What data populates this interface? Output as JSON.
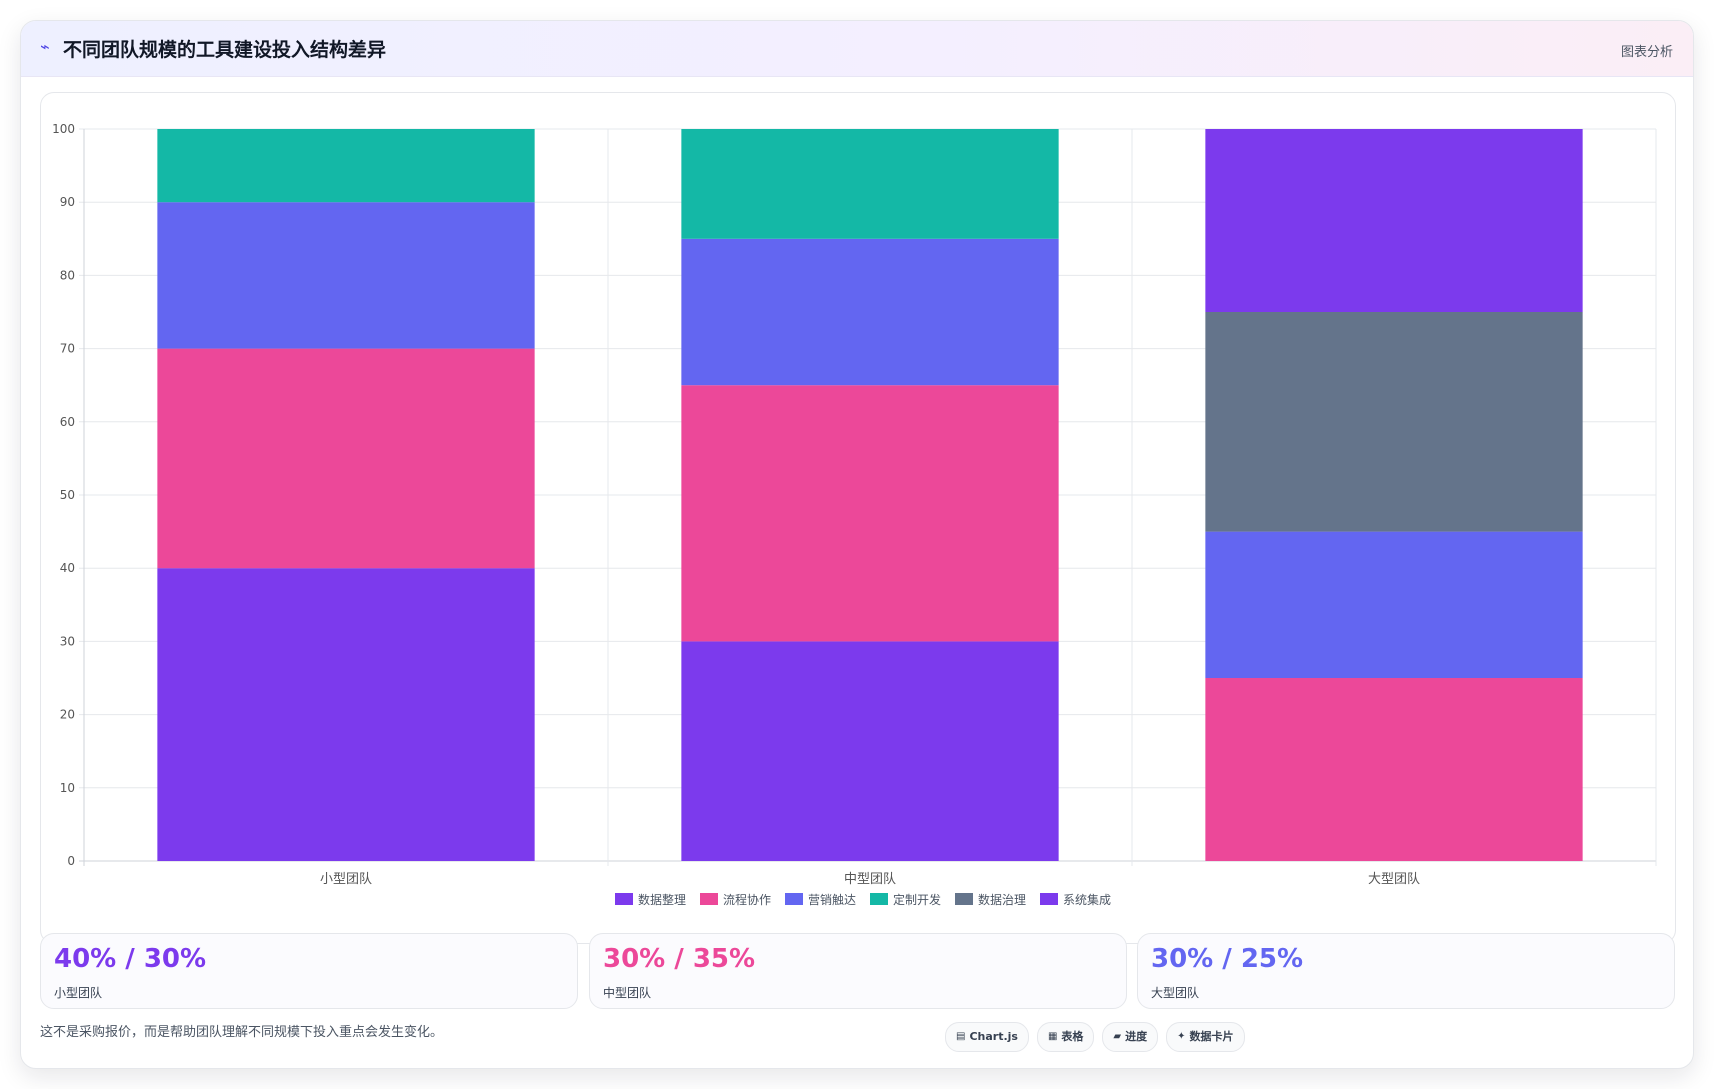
{
  "header": {
    "icon": "chart-trend-icon",
    "title": "不同团队规模的工具建设投入结构差异",
    "tag": "图表分析"
  },
  "chart_data": {
    "type": "bar",
    "stacked": true,
    "categories": [
      "小型团队",
      "中型团队",
      "大型团队"
    ],
    "ylim": [
      0,
      100
    ],
    "yticks": [
      0,
      10,
      20,
      30,
      40,
      50,
      60,
      70,
      80,
      90,
      100
    ],
    "grid": true,
    "legend_position": "bottom",
    "series": [
      {
        "name": "数据整理",
        "color": "#7c3aed",
        "values": [
          40,
          30,
          0
        ]
      },
      {
        "name": "流程协作",
        "color": "#ec4899",
        "values": [
          30,
          35,
          25
        ]
      },
      {
        "name": "营销触达",
        "color": "#6366f1",
        "values": [
          20,
          20,
          20
        ]
      },
      {
        "name": "定制开发",
        "color": "#14b8a6",
        "values": [
          10,
          15,
          0
        ]
      },
      {
        "name": "数据治理",
        "color": "#64748b",
        "values": [
          0,
          0,
          30
        ]
      },
      {
        "name": "系统集成",
        "color": "#7c3aed",
        "values": [
          0,
          0,
          25
        ]
      }
    ]
  },
  "stats": [
    {
      "value": "40% / 30%",
      "label": "小型团队",
      "color": "#7c3aed"
    },
    {
      "value": "30% / 35%",
      "label": "中型团队",
      "color": "#ec4899"
    },
    {
      "value": "30% / 25%",
      "label": "大型团队",
      "color": "#6366f1"
    }
  ],
  "footnote": "这不是采购报价，而是帮助团队理解不同规模下投入重点会发生变化。",
  "chips": [
    {
      "icon": "chart-icon",
      "glyph": "▤",
      "label": "Chart.js"
    },
    {
      "icon": "table-icon",
      "glyph": "▦",
      "label": "表格"
    },
    {
      "icon": "progress-icon",
      "glyph": "▰",
      "label": "进度"
    },
    {
      "icon": "card-icon",
      "glyph": "✦",
      "label": "数据卡片"
    }
  ]
}
